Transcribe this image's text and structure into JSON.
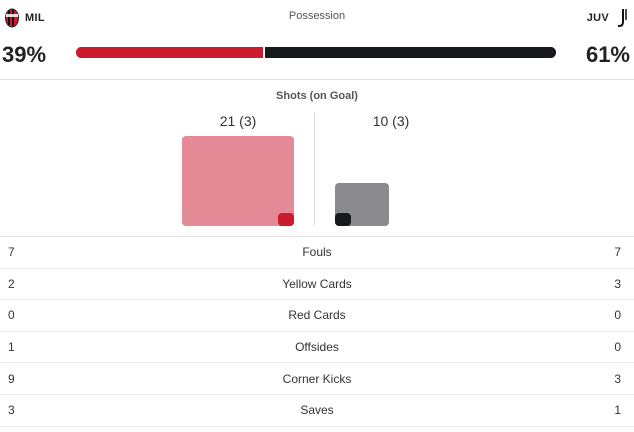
{
  "teams": {
    "home": {
      "abbr": "MIL",
      "crest_icon": "ac-milan-crest-icon",
      "color": "#cc1a2e"
    },
    "away": {
      "abbr": "JUV",
      "crest_icon": "juventus-crest-icon",
      "color": "#17191c"
    }
  },
  "possession": {
    "title": "Possession",
    "home_pct": "39%",
    "away_pct": "61%",
    "home_value": 39,
    "away_value": 61
  },
  "shots": {
    "title": "Shots (on Goal)",
    "home_label": "21 (3)",
    "away_label": "10 (3)",
    "home_total": 21,
    "home_on_goal": 3,
    "away_total": 10,
    "away_on_goal": 3,
    "home_color": "#e48a96",
    "away_color": "#8b8b8e"
  },
  "stats": [
    {
      "label": "Fouls",
      "home": "7",
      "away": "7"
    },
    {
      "label": "Yellow Cards",
      "home": "2",
      "away": "3"
    },
    {
      "label": "Red Cards",
      "home": "0",
      "away": "0"
    },
    {
      "label": "Offsides",
      "home": "1",
      "away": "0"
    },
    {
      "label": "Corner Kicks",
      "home": "9",
      "away": "3"
    },
    {
      "label": "Saves",
      "home": "3",
      "away": "1"
    }
  ]
}
